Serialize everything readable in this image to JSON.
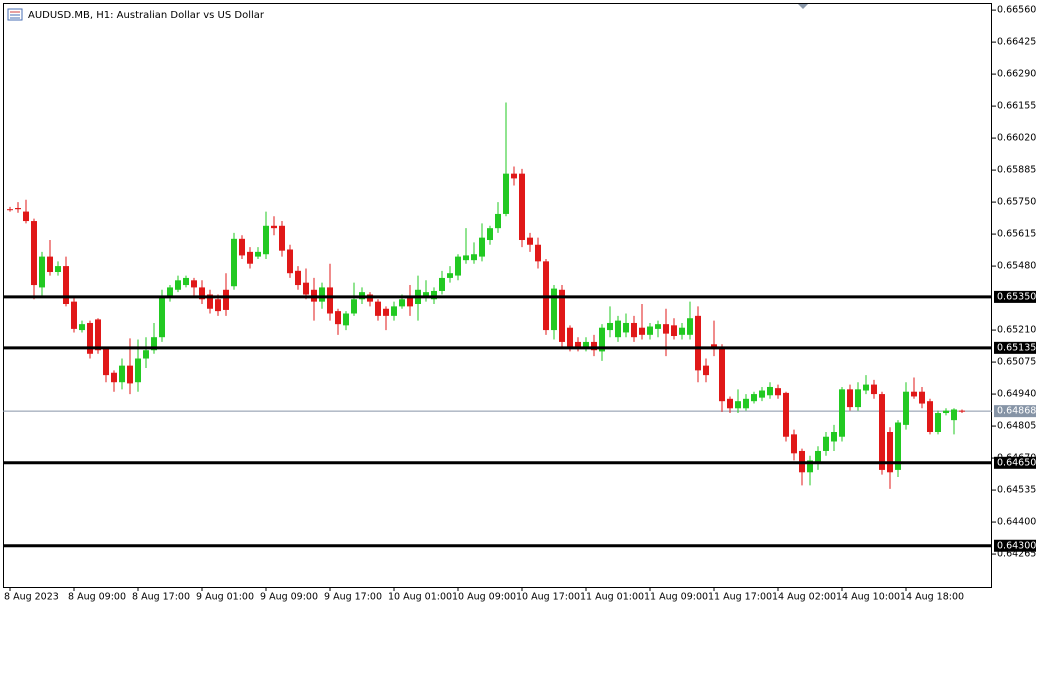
{
  "chart_data": {
    "type": "candlestick",
    "title": "AUDUSD.MB, H1:  Australian Dollar vs US Dollar",
    "up_color": "#22c922",
    "down_color": "#e01818",
    "categories": [
      "8 Aug 2023",
      null,
      null,
      null,
      null,
      null,
      null,
      null,
      "8 Aug 09:00",
      null,
      null,
      null,
      null,
      null,
      null,
      null,
      "8 Aug 17:00",
      null,
      null,
      null,
      null,
      null,
      null,
      null,
      "9 Aug 01:00",
      null,
      null,
      null,
      null,
      null,
      null,
      null,
      "9 Aug 09:00",
      null,
      null,
      null,
      null,
      null,
      null,
      null,
      "9 Aug 17:00",
      null,
      null,
      null,
      null,
      null,
      null,
      null,
      "10 Aug 01:00",
      null,
      null,
      null,
      null,
      null,
      null,
      null,
      "10 Aug 09:00",
      null,
      null,
      null,
      null,
      null,
      null,
      null,
      "10 Aug 17:00",
      null,
      null,
      null,
      null,
      null,
      null,
      null,
      "11 Aug 01:00",
      null,
      null,
      null,
      null,
      null,
      null,
      null,
      "11 Aug 09:00",
      null,
      null,
      null,
      null,
      null,
      null,
      null,
      "11 Aug 17:00",
      null,
      null,
      null,
      null,
      null,
      null,
      null,
      "14 Aug 02:00",
      null,
      null,
      null,
      null,
      null,
      null,
      null,
      "14 Aug 10:00",
      null,
      null,
      null,
      null,
      null,
      null,
      null,
      "14 Aug 18:00",
      null,
      null,
      null,
      null,
      null,
      null,
      null
    ],
    "open": [
      0.6572,
      0.65725,
      0.6571,
      0.6567,
      0.6539,
      0.6552,
      0.65455,
      0.6548,
      0.6533,
      0.6521,
      0.6524,
      0.65255,
      0.6513,
      0.6503,
      0.6499,
      0.6506,
      0.6499,
      0.6509,
      0.65125,
      0.6518,
      0.6535,
      0.6538,
      0.654,
      0.6542,
      0.6539,
      0.6536,
      0.6534,
      0.6538,
      0.65395,
      0.65595,
      0.6554,
      0.6552,
      0.6553,
      0.6565,
      0.6565,
      0.6555,
      0.6546,
      0.6541,
      0.6538,
      0.6533,
      0.6539,
      0.6529,
      0.6523,
      0.6528,
      0.6534,
      0.6536,
      0.6533,
      0.653,
      0.6527,
      0.6531,
      0.6535,
      0.6532,
      0.6535,
      0.6534,
      0.65375,
      0.6543,
      0.6544,
      0.65505,
      0.65505,
      0.6552,
      0.6559,
      0.6564,
      0.657,
      0.6587,
      0.6587,
      0.656,
      0.6557,
      0.655,
      0.6521,
      0.6538,
      0.6522,
      0.6516,
      0.65135,
      0.6516,
      0.6512,
      0.6521,
      0.6518,
      0.652,
      0.6524,
      0.6522,
      0.6519,
      0.65215,
      0.65235,
      0.6523,
      0.6519,
      0.6519,
      0.6527,
      0.6506,
      0.6515,
      0.6514,
      0.6492,
      0.6488,
      0.6488,
      0.6491,
      0.64925,
      0.64935,
      0.64965,
      0.64945,
      0.6477,
      0.647,
      0.6461,
      0.6465,
      0.647,
      0.6474,
      0.6476,
      0.6496,
      0.64885,
      0.64955,
      0.6498,
      0.6494,
      0.6478,
      0.6462,
      0.6481,
      0.6495,
      0.6495,
      0.6491,
      0.6478,
      0.6486,
      0.6483,
      0.6487
    ],
    "high": [
      0.6573,
      0.6575,
      0.6576,
      0.6568,
      0.6554,
      0.6559,
      0.655,
      0.6552,
      0.6535,
      0.6525,
      0.6525,
      0.6526,
      0.6514,
      0.6504,
      0.6509,
      0.65175,
      0.6517,
      0.6518,
      0.6524,
      0.6538,
      0.654,
      0.6544,
      0.6544,
      0.6543,
      0.6542,
      0.6538,
      0.6536,
      0.6545,
      0.6562,
      0.6561,
      0.6556,
      0.6556,
      0.6571,
      0.6569,
      0.6567,
      0.6557,
      0.6548,
      0.6547,
      0.6543,
      0.6541,
      0.6549,
      0.653,
      0.6529,
      0.6541,
      0.6539,
      0.6537,
      0.6534,
      0.6531,
      0.6533,
      0.6536,
      0.654,
      0.6544,
      0.6542,
      0.6539,
      0.6546,
      0.6548,
      0.6553,
      0.6564,
      0.6558,
      0.6566,
      0.6565,
      0.6575,
      0.6617,
      0.659,
      0.6589,
      0.6562,
      0.656,
      0.6551,
      0.654,
      0.654,
      0.6523,
      0.6518,
      0.6518,
      0.6519,
      0.65235,
      0.6531,
      0.6527,
      0.6528,
      0.6527,
      0.6532,
      0.6524,
      0.6525,
      0.653,
      0.6526,
      0.6524,
      0.6533,
      0.6531,
      0.6509,
      0.6525,
      0.6515,
      0.6493,
      0.6496,
      0.6494,
      0.6495,
      0.6497,
      0.6499,
      0.6498,
      0.6495,
      0.6479,
      0.6471,
      0.6468,
      0.6472,
      0.6478,
      0.6481,
      0.6497,
      0.6498,
      0.6499,
      0.6502,
      0.65,
      0.6495,
      0.648,
      0.6483,
      0.6499,
      0.6501,
      0.6497,
      0.6492,
      0.6487,
      0.6488,
      0.6488,
      0.64875
    ],
    "low": [
      0.6571,
      0.65705,
      0.6566,
      0.6534,
      0.6535,
      0.6544,
      0.6544,
      0.6531,
      0.652,
      0.652,
      0.6509,
      0.6511,
      0.6499,
      0.6495,
      0.6496,
      0.6494,
      0.6495,
      0.6505,
      0.6511,
      0.6516,
      0.6533,
      0.6537,
      0.6539,
      0.6535,
      0.6532,
      0.6528,
      0.6527,
      0.6527,
      0.6538,
      0.6551,
      0.6547,
      0.6551,
      0.6551,
      0.6561,
      0.6552,
      0.6543,
      0.6538,
      0.6534,
      0.6525,
      0.653,
      0.6525,
      0.6519,
      0.6521,
      0.6527,
      0.6532,
      0.6531,
      0.6525,
      0.6521,
      0.6525,
      0.653,
      0.6527,
      0.6525,
      0.6533,
      0.6532,
      0.6536,
      0.6541,
      0.6542,
      0.6549,
      0.6549,
      0.655,
      0.6557,
      0.6562,
      0.6569,
      0.6582,
      0.6556,
      0.6554,
      0.6547,
      0.6519,
      0.6517,
      0.6514,
      0.6512,
      0.6512,
      0.6512,
      0.651,
      0.6508,
      0.6518,
      0.6516,
      0.6518,
      0.6516,
      0.6517,
      0.6517,
      0.6518,
      0.651,
      0.6517,
      0.6517,
      0.6517,
      0.6499,
      0.6499,
      0.651,
      0.64865,
      0.6486,
      0.6486,
      0.6487,
      0.649,
      0.6491,
      0.6492,
      0.6492,
      0.6474,
      0.6466,
      0.64555,
      0.64555,
      0.6462,
      0.6468,
      0.647,
      0.6474,
      0.6487,
      0.6487,
      0.6494,
      0.6492,
      0.646,
      0.6454,
      0.6459,
      0.6479,
      0.6492,
      0.6488,
      0.6477,
      0.6477,
      0.6485,
      0.6477,
      0.6486
    ],
    "close": [
      0.65718,
      0.6572,
      0.6567,
      0.654,
      0.6552,
      0.65455,
      0.6548,
      0.6532,
      0.65215,
      0.65235,
      0.6511,
      0.65125,
      0.6502,
      0.6499,
      0.6506,
      0.64985,
      0.6509,
      0.65125,
      0.6518,
      0.6535,
      0.6539,
      0.6542,
      0.6543,
      0.6539,
      0.6534,
      0.653,
      0.6529,
      0.65295,
      0.65595,
      0.65525,
      0.6549,
      0.6554,
      0.6565,
      0.6564,
      0.65545,
      0.6545,
      0.654,
      0.6536,
      0.6533,
      0.6539,
      0.6528,
      0.65235,
      0.6528,
      0.6534,
      0.6537,
      0.6533,
      0.6527,
      0.6527,
      0.6531,
      0.6534,
      0.6531,
      0.6538,
      0.6537,
      0.65375,
      0.6543,
      0.6545,
      0.6552,
      0.65525,
      0.6553,
      0.656,
      0.6564,
      0.657,
      0.6587,
      0.6585,
      0.6559,
      0.6557,
      0.655,
      0.6521,
      0.65385,
      0.6516,
      0.6514,
      0.6513,
      0.6516,
      0.65125,
      0.6522,
      0.6524,
      0.6525,
      0.6524,
      0.6518,
      0.6519,
      0.65225,
      0.65235,
      0.65195,
      0.65185,
      0.6522,
      0.6526,
      0.6504,
      0.6502,
      0.6513,
      0.6491,
      0.6488,
      0.6491,
      0.6492,
      0.6494,
      0.64955,
      0.6497,
      0.64935,
      0.6476,
      0.6469,
      0.6461,
      0.6466,
      0.647,
      0.6476,
      0.6478,
      0.6496,
      0.64885,
      0.6496,
      0.6498,
      0.6494,
      0.6462,
      0.6461,
      0.6482,
      0.6495,
      0.6493,
      0.649,
      0.6478,
      0.6486,
      0.6487,
      0.64875,
      0.64868
    ],
    "ylim": [
      0.64126,
      0.6659
    ],
    "yticks": [
      {
        "value": 0.6656,
        "label": "0.66560"
      },
      0.66425,
      {
        "value": 0.6629,
        "label": "0.66290"
      },
      0.66155,
      {
        "value": 0.6602,
        "label": "0.66020"
      },
      0.65885,
      {
        "value": 0.6575,
        "label": "0.65750"
      },
      0.65615,
      {
        "value": 0.6548,
        "label": "0.65480"
      },
      {
        "value": 0.6521,
        "label": "0.65210"
      },
      0.65075,
      {
        "value": 0.6494,
        "label": "0.64940"
      },
      0.64805,
      {
        "value": 0.6467,
        "label": "0.64670"
      },
      0.64535,
      {
        "value": 0.644,
        "label": "0.64400"
      },
      0.64265
    ],
    "levels": [
      {
        "value": 0.6535,
        "label": "0.65350"
      },
      0.65135,
      {
        "value": 0.6465,
        "label": "0.64650"
      },
      {
        "value": 0.643,
        "label": "0.64300"
      }
    ],
    "last_price": 0.64868,
    "level_color": "#000000",
    "last_price_color": "#8694a6"
  }
}
